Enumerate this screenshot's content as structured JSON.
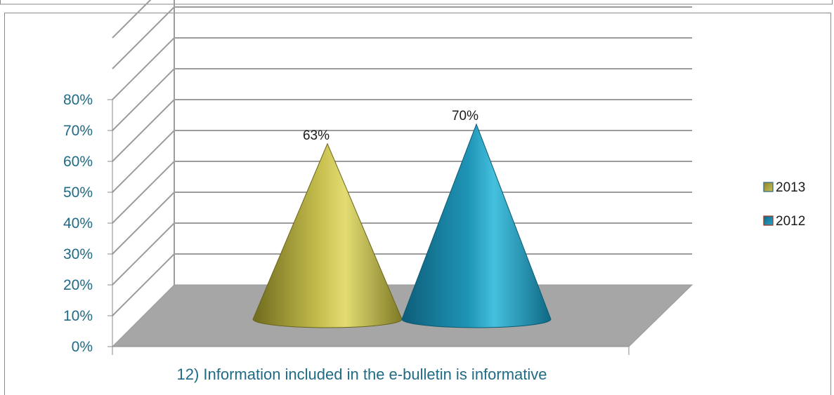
{
  "chart_data": {
    "type": "bar",
    "style": "3d-cone",
    "categories": [
      "12) Information included in the e-bulletin is informative"
    ],
    "xlabel": "12) Information included in the e-bulletin is informative",
    "ylabel": "",
    "ylim": [
      0,
      80
    ],
    "yticks": [
      "0%",
      "10%",
      "20%",
      "30%",
      "40%",
      "50%",
      "60%",
      "70%",
      "80%"
    ],
    "grid": true,
    "legend_position": "right",
    "series": [
      {
        "name": "2013",
        "value": 63,
        "label": "63%",
        "color": "#b3ab3a"
      },
      {
        "name": "2012",
        "value": 70,
        "label": "70%",
        "color": "#1a8aab"
      }
    ]
  }
}
